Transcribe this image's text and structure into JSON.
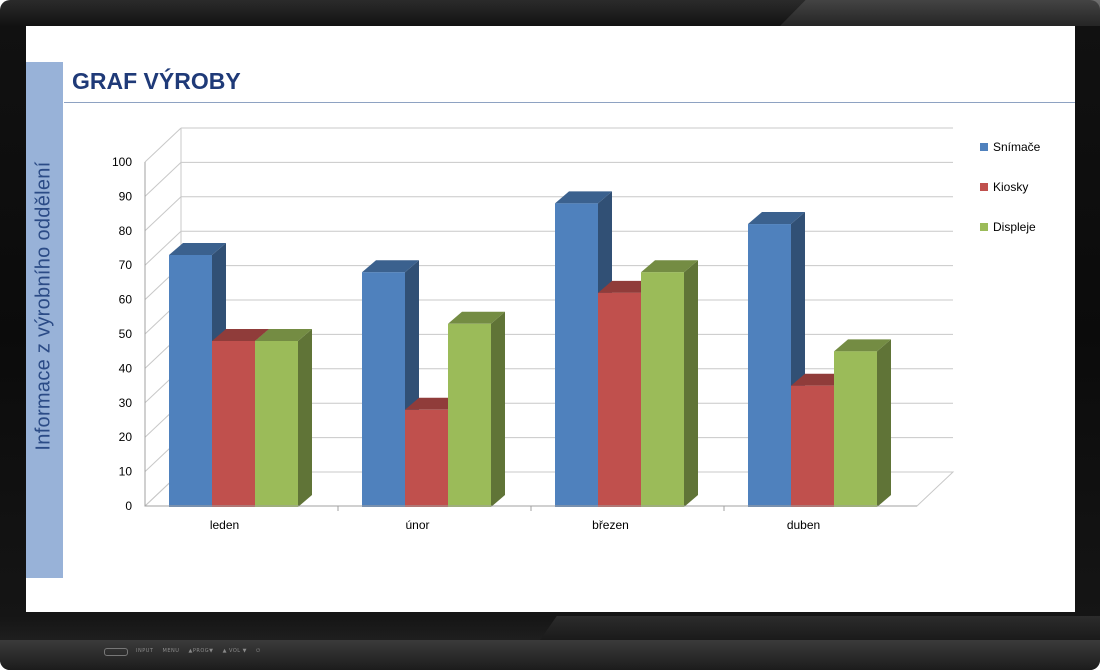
{
  "slide": {
    "title": "GRAF VÝROBY",
    "side_label": "Informace z výrobního oddělení"
  },
  "bezel": {
    "controls": [
      "INPUT",
      "MENU",
      "▲PROG▼",
      "▲ VOL ▼",
      "⏻"
    ]
  },
  "chart_data": {
    "type": "bar",
    "style": "3d-clustered-column",
    "title": "",
    "xlabel": "",
    "ylabel": "",
    "categories": [
      "leden",
      "únor",
      "březen",
      "duben"
    ],
    "ylim": [
      0,
      100
    ],
    "yticks": [
      0,
      10,
      20,
      30,
      40,
      50,
      60,
      70,
      80,
      90,
      100
    ],
    "grid": true,
    "legend_position": "right",
    "series": [
      {
        "name": "Snímače",
        "values": [
          75,
          70,
          90,
          84
        ],
        "color": "#4f81bd"
      },
      {
        "name": "Kiosky",
        "values": [
          50,
          30,
          64,
          37
        ],
        "color": "#c0504d"
      },
      {
        "name": "Displeje",
        "values": [
          50,
          55,
          70,
          47
        ],
        "color": "#9bbb59"
      }
    ]
  }
}
